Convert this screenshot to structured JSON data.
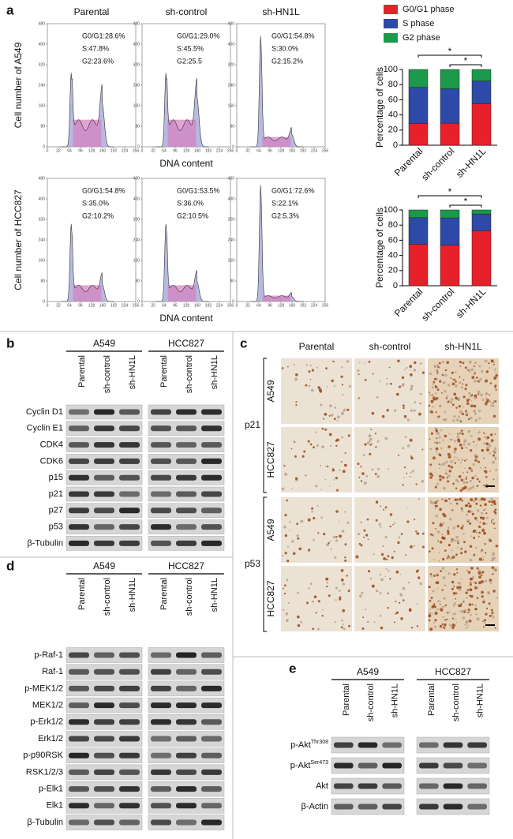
{
  "panel_a": {
    "label": "a",
    "columns": [
      "Parental",
      "sh-control",
      "sh-HN1L"
    ],
    "rows": [
      {
        "ylabel": "Cell number of A549",
        "stats": [
          [
            "G0/G1:28.6%",
            "S:47.8%",
            "G2:23.6%"
          ],
          [
            "G0/G1:29.0%",
            "S:45.5%",
            "G2:25.5"
          ],
          [
            "G0/G1:54.8%",
            "S:30.0%",
            "G2:15.2%"
          ]
        ]
      },
      {
        "ylabel": "Cell number of HCC827",
        "stats": [
          [
            "G0/G1:54.8%",
            "S:35.0%",
            "G2:10.2%"
          ],
          [
            "G0/G1:53.5%",
            "S:36.0%",
            "G2:10.5%"
          ],
          [
            "G0/G1:72.6%",
            "S:22.1%",
            "G2:5.3%"
          ]
        ]
      }
    ],
    "xlabel": "DNA content",
    "xlim": [
      0,
      256
    ],
    "xticks": [
      0,
      32,
      64,
      96,
      128,
      160,
      192,
      224,
      256
    ],
    "ylim": [
      0,
      480
    ],
    "yticks": [
      0,
      80,
      160,
      240,
      320,
      400,
      480
    ]
  },
  "chart_data": [
    {
      "type": "bar",
      "stacked": true,
      "ylabel": "Percentage of cells",
      "categories": [
        "Parental",
        "sh-control",
        "sh-HN1L"
      ],
      "series": [
        {
          "name": "G0/G1 phase",
          "color": "#e8202a",
          "values": [
            28.6,
            29.0,
            54.8
          ]
        },
        {
          "name": "S phase",
          "color": "#2e4aa8",
          "values": [
            47.8,
            45.5,
            30.0
          ]
        },
        {
          "name": "G2 phase",
          "color": "#1a9a4a",
          "values": [
            23.6,
            25.5,
            15.2
          ]
        }
      ],
      "ylim": [
        0,
        100
      ],
      "yticks": [
        0,
        20,
        40,
        60,
        80,
        100
      ],
      "legend": true,
      "significance": [
        "*",
        "*"
      ]
    },
    {
      "type": "bar",
      "stacked": true,
      "ylabel": "Percentage of cells",
      "categories": [
        "Parental",
        "sh-control",
        "sh-HN1L"
      ],
      "series": [
        {
          "name": "G0/G1 phase",
          "color": "#e8202a",
          "values": [
            54.8,
            53.5,
            72.6
          ]
        },
        {
          "name": "S phase",
          "color": "#2e4aa8",
          "values": [
            35.0,
            36.0,
            22.1
          ]
        },
        {
          "name": "G2 phase",
          "color": "#1a9a4a",
          "values": [
            10.2,
            10.5,
            5.3
          ]
        }
      ],
      "ylim": [
        0,
        100
      ],
      "yticks": [
        0,
        20,
        40,
        60,
        80,
        100
      ],
      "legend": false,
      "significance": [
        "*",
        "*"
      ]
    }
  ],
  "panel_b": {
    "label": "b",
    "groups": [
      "A549",
      "HCC827"
    ],
    "lanes": [
      "Parental",
      "sh-control",
      "sh-HN1L"
    ],
    "proteins": [
      "Cyclin D1",
      "Cyclin E1",
      "CDK4",
      "CDK6",
      "p15",
      "p21",
      "p27",
      "p53",
      "β-Tubulin"
    ]
  },
  "panel_c": {
    "label": "c",
    "columns": [
      "Parental",
      "sh-control",
      "sh-HN1L"
    ],
    "markers": [
      {
        "name": "p21",
        "lines": [
          "A549",
          "HCC827"
        ]
      },
      {
        "name": "p53",
        "lines": [
          "A549",
          "HCC827"
        ]
      }
    ]
  },
  "panel_d": {
    "label": "d",
    "groups": [
      "A549",
      "HCC827"
    ],
    "lanes": [
      "Parental",
      "sh-control",
      "sh-HN1L"
    ],
    "proteins": [
      "p-Raf-1",
      "Raf-1",
      "p-MEK1/2",
      "MEK1/2",
      "p-Erk1/2",
      "Erk1/2",
      "p-p90RSK",
      "RSK1/2/3",
      "p-Elk1",
      "Elk1",
      "β-Tubulin"
    ]
  },
  "panel_e": {
    "label": "e",
    "groups": [
      "A549",
      "HCC827"
    ],
    "lanes": [
      "Parental",
      "sh-control",
      "sh-HN1L"
    ],
    "proteins": [
      {
        "name": "p-Akt",
        "sup": "Thr308"
      },
      {
        "name": "p-Akt",
        "sup": "Ser473"
      },
      {
        "name": "Akt"
      },
      {
        "name": "β-Actin"
      }
    ]
  }
}
